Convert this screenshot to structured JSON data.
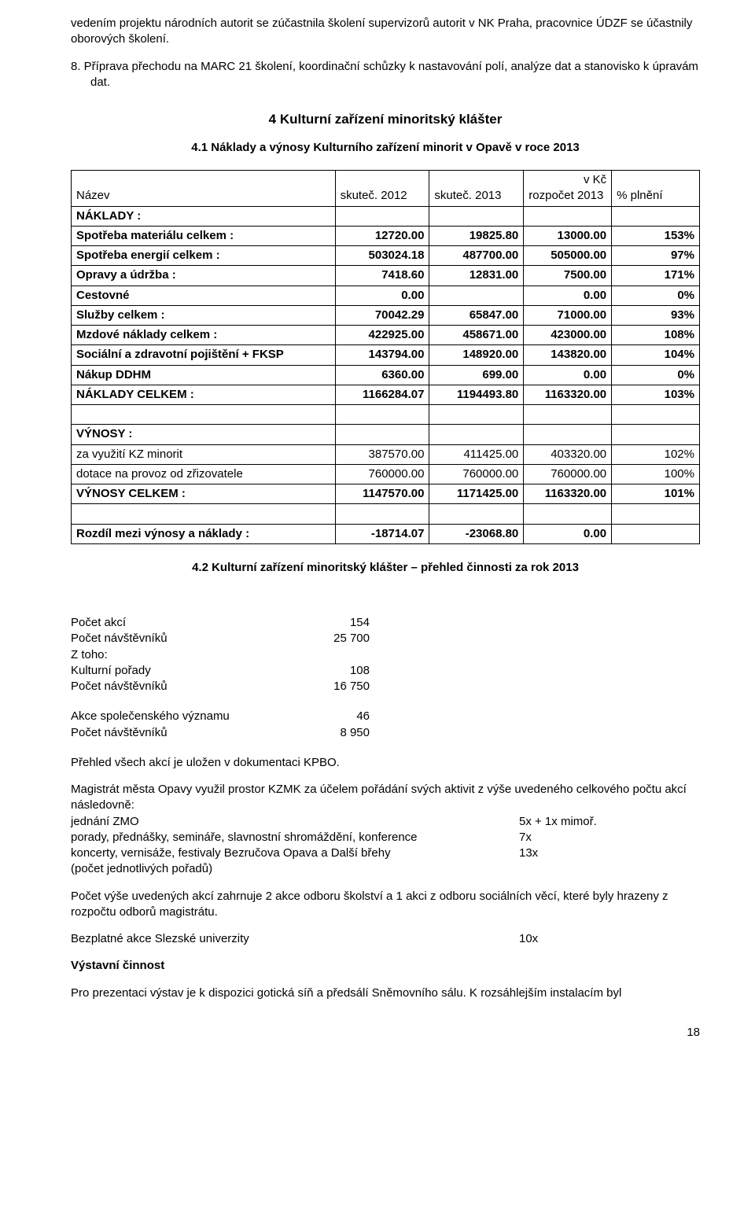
{
  "topPara": "vedením projektu národních autorit se zúčastnila školení supervizorů autorit v NK Praha,  pracovnice ÚDZF se účastnily oborových školení.",
  "item8": "8. Příprava přechodu na MARC 21 školení, koordinační schůzky k nastavování polí, analýze dat a stanovisko k úpravám dat.",
  "h2": "4 Kulturní zařízení minoritský klášter",
  "h3_1": "4.1 Náklady a výnosy  Kulturního zařízení minorit v Opavě v roce 2013",
  "currency": "v  Kč",
  "tableHeader": {
    "c0": "Název",
    "c1": "skuteč. 2012",
    "c2": "skuteč. 2013",
    "c3": "rozpočet 2013",
    "c4": "% plnění"
  },
  "rows": [
    {
      "label": "NÁKLADY :",
      "bold": true
    },
    {
      "label": "Spotřeba materiálu celkem :",
      "v1": "12720.00",
      "v2": "19825.80",
      "v3": "13000.00",
      "v4": "153%",
      "bold": true
    },
    {
      "label": "Spotřeba energií celkem :",
      "v1": "503024.18",
      "v2": "487700.00",
      "v3": "505000.00",
      "v4": "97%",
      "bold": true
    },
    {
      "label": "Opravy a údržba :",
      "v1": "7418.60",
      "v2": "12831.00",
      "v3": "7500.00",
      "v4": "171%",
      "bold": true
    },
    {
      "label": "Cestovné",
      "v1": "0.00",
      "v2": "",
      "v3": "0.00",
      "v4": "0%",
      "bold": true
    },
    {
      "label": "Služby celkem :",
      "v1": "70042.29",
      "v2": "65847.00",
      "v3": "71000.00",
      "v4": "93%",
      "bold": true
    },
    {
      "label": "Mzdové náklady celkem :",
      "v1": "422925.00",
      "v2": "458671.00",
      "v3": "423000.00",
      "v4": "108%",
      "bold": true
    },
    {
      "label": "Sociální a zdravotní pojištění + FKSP",
      "v1": "143794.00",
      "v2": "148920.00",
      "v3": "143820.00",
      "v4": "104%",
      "bold": true
    },
    {
      "label": "Nákup DDHM",
      "v1": "6360.00",
      "v2": "699.00",
      "v3": "0.00",
      "v4": "0%",
      "bold": true
    },
    {
      "label": "NÁKLADY CELKEM :",
      "v1": "1166284.07",
      "v2": "1194493.80",
      "v3": "1163320.00",
      "v4": "103%",
      "bold": true
    },
    {
      "label": "",
      "empty": true
    },
    {
      "label": "VÝNOSY :",
      "bold": true
    },
    {
      "label": "za využití KZ minorit",
      "v1": "387570.00",
      "v2": "411425.00",
      "v3": "403320.00",
      "v4": "102%"
    },
    {
      "label": "dotace na provoz od zřizovatele",
      "v1": "760000.00",
      "v2": "760000.00",
      "v3": "760000.00",
      "v4": "100%"
    },
    {
      "label": "VÝNOSY CELKEM :",
      "v1": "1147570.00",
      "v2": "1171425.00",
      "v3": "1163320.00",
      "v4": "101%",
      "bold": true
    },
    {
      "label": "",
      "empty": true
    },
    {
      "label": "Rozdíl mezi výnosy a náklady :",
      "v1": "-18714.07",
      "v2": "-23068.80",
      "v3": "0.00",
      "v4": "",
      "bold": true
    }
  ],
  "h3_2": "4.2 Kulturní zařízení minoritský klášter – přehled činnosti za rok 2013",
  "stats1": [
    {
      "label": "Počet akcí",
      "val": "154"
    },
    {
      "label": "Počet návštěvníků",
      "val": "25 700"
    },
    {
      "label": "Z toho:",
      "val": ""
    },
    {
      "label": "Kulturní pořady",
      "val": "108"
    },
    {
      "label": "Počet návštěvníků",
      "val": "16 750"
    }
  ],
  "stats2": [
    {
      "label": "Akce společenského významu",
      "val": "46"
    },
    {
      "label": "Počet návštěvníků",
      "val": "8 950"
    }
  ],
  "p_prehled": "Přehled všech akcí je uložen v dokumentaci KPBO.",
  "p_magistrat": "Magistrát města Opavy využil prostor KZMK za účelem pořádání svých aktivit z výše uvedeného celkového počtu akcí následovně:",
  "magRows": [
    {
      "label": "jednání ZMO",
      "val": "5x + 1x mimoř."
    },
    {
      "label": "porady, přednášky, semináře, slavnostní shromáždění, konference",
      "val": "7x"
    },
    {
      "label": "koncerty, vernisáže, festivaly Bezručova Opava a Další břehy",
      "val": "13x"
    },
    {
      "label": "(počet jednotlivých pořadů)",
      "val": ""
    }
  ],
  "p_pocet": "Počet výše uvedených akcí zahrnuje 2 akce odboru školství a 1 akci z odboru sociálních věcí, které byly hrazeny z rozpočtu odborů magistrátu.",
  "bezplatne": {
    "label": "Bezplatné akce  Slezské univerzity",
    "val": "10x"
  },
  "h_vystavni": "Výstavní činnost",
  "p_vystavy": "Pro prezentaci výstav je k dispozici gotická síň a předsálí Sněmovního sálu. K rozsáhlejším instalacím byl",
  "pageNum": "18"
}
